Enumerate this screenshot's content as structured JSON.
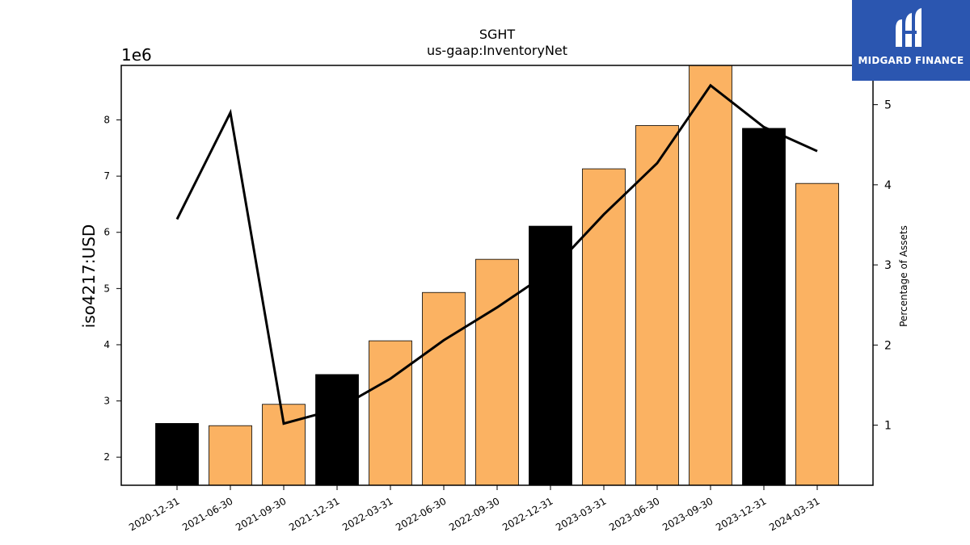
{
  "chart_data": {
    "type": "bar",
    "title": "SGHT",
    "subtitle": "us-gaap:InventoryNet",
    "ylabel": "iso4217:USD",
    "y_offset_label": "1e6",
    "y2label": "Percentage of Assets",
    "categories": [
      "2020-12-31",
      "2021-06-30",
      "2021-09-30",
      "2021-12-31",
      "2022-03-31",
      "2022-06-30",
      "2022-09-30",
      "2022-12-31",
      "2023-03-31",
      "2023-06-30",
      "2023-09-30",
      "2023-12-31",
      "2024-03-31"
    ],
    "series": [
      {
        "type": "bar",
        "values": [
          2.6,
          2.56,
          2.94,
          3.47,
          4.07,
          4.93,
          5.52,
          6.11,
          7.13,
          7.9,
          8.97,
          7.85,
          6.87
        ],
        "colors": [
          "#000000",
          "#fbb262",
          "#fbb262",
          "#000000",
          "#fbb262",
          "#fbb262",
          "#fbb262",
          "#000000",
          "#fbb262",
          "#fbb262",
          "#fbb262",
          "#000000",
          "#fbb262"
        ]
      },
      {
        "type": "line",
        "axis": "right",
        "color": "#000000",
        "values": [
          3.57,
          4.9,
          1.02,
          1.2,
          1.58,
          2.06,
          2.47,
          2.92,
          3.63,
          4.27,
          5.24,
          4.72,
          4.42
        ]
      }
    ],
    "ylim": [
      1.5,
      8.97
    ],
    "yticks": [
      2,
      3,
      4,
      5,
      6,
      7,
      8
    ],
    "y2lim": [
      0.25,
      5.49
    ],
    "y2ticks": [
      1,
      2,
      3,
      4,
      5
    ]
  },
  "logo": {
    "text": "MIDGARD FINANCE"
  }
}
